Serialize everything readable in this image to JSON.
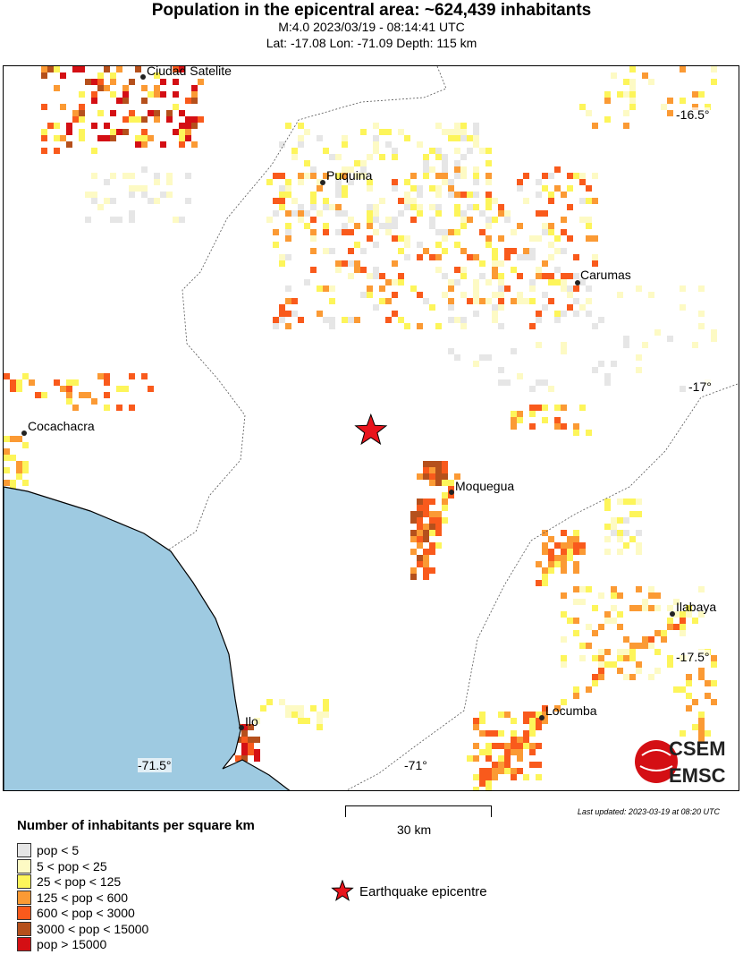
{
  "header": {
    "title": "Population in the epicentral area: ~624,439 inhabitants",
    "subtitle1": "M:4.0 2023/03/19 - 08:14:41 UTC",
    "subtitle2": "Lat: -17.08 Lon: -71.09 Depth: 115 km"
  },
  "map": {
    "epicentre": {
      "lat": -17.08,
      "lon": -71.09,
      "color": "#e8141c",
      "icon": "star-icon"
    },
    "cities": [
      "Ciudad Satelite",
      "Puquina",
      "Carumas",
      "Cocachacra",
      "Moquegua",
      "Ilabaya",
      "Ilo",
      "Locumba"
    ],
    "lat_ticks": [
      "-16.5°",
      "-17°",
      "-17.5°"
    ],
    "lon_ticks": [
      "-71.5°",
      "-71°"
    ],
    "ocean_color": "#9ecae1"
  },
  "scale": {
    "label": "30 km"
  },
  "updated": "Last updated: 2023-03-19 at 08:20 UTC",
  "legend": {
    "title": "Number of inhabitants per square km",
    "items": [
      {
        "label": "pop < 5",
        "color": "#e6e6e6"
      },
      {
        "label": "5 < pop < 25",
        "color": "#fdfac4"
      },
      {
        "label": "25 < pop < 125",
        "color": "#fdf55a"
      },
      {
        "label": "125 < pop < 600",
        "color": "#fb9a34"
      },
      {
        "label": "600 < pop < 3000",
        "color": "#f95a1c"
      },
      {
        "label": "3000 < pop < 15000",
        "color": "#b5501c"
      },
      {
        "label": "pop > 15000",
        "color": "#d40f14"
      }
    ],
    "epicentre_label": "Earthquake epicentre"
  },
  "logo": {
    "top": "CSEM",
    "bottom": "EMSC"
  }
}
